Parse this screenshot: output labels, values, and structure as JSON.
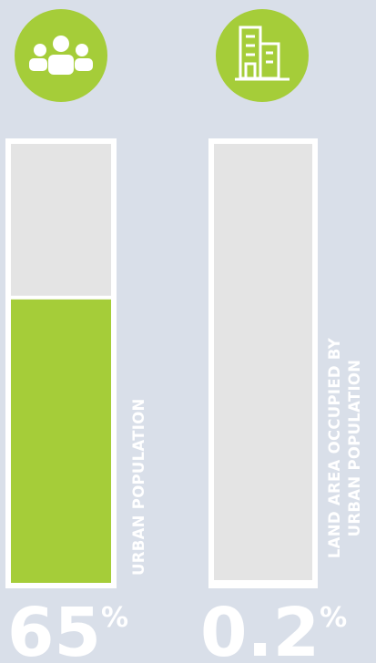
{
  "chart_data": {
    "type": "bar",
    "categories": [
      "URBAN POPULATION",
      "LAND AREA OCCUPIED BY URBAN POPULATION"
    ],
    "values": [
      65,
      0.2
    ],
    "value_labels": [
      "65%",
      "0.2%"
    ],
    "color": "#a5cd39",
    "ylim": [
      0,
      100
    ]
  }
}
